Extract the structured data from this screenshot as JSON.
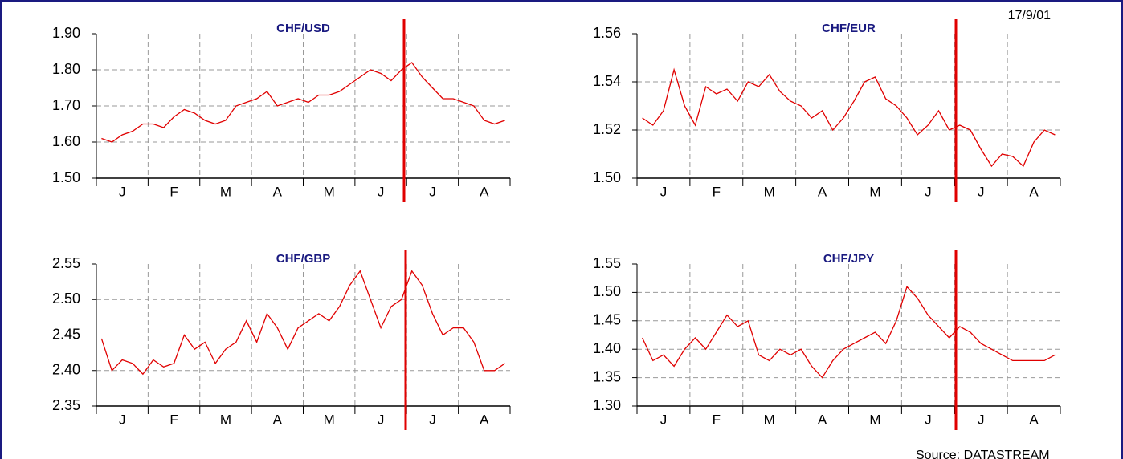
{
  "date": "17/9/01",
  "source": "Source: DATASTREAM",
  "chart_data": [
    {
      "type": "line",
      "title": "CHF/USD",
      "color": "#e00000",
      "grid": true,
      "categories": [
        null,
        null,
        "J",
        null,
        null,
        null,
        null,
        "F",
        null,
        null,
        null,
        null,
        "M",
        null,
        null,
        null,
        null,
        "A",
        null,
        null,
        null,
        null,
        "M",
        null,
        null,
        null,
        null,
        "J",
        null,
        null,
        null,
        null,
        "J",
        null,
        null,
        null,
        null,
        "A",
        null,
        null
      ],
      "values": [
        1.61,
        1.6,
        1.62,
        1.63,
        1.65,
        1.65,
        1.64,
        1.67,
        1.69,
        1.68,
        1.66,
        1.65,
        1.66,
        1.7,
        1.71,
        1.72,
        1.74,
        1.7,
        1.71,
        1.72,
        1.71,
        1.73,
        1.73,
        1.74,
        1.76,
        1.78,
        1.8,
        1.79,
        1.77,
        1.8,
        1.82,
        1.78,
        1.75,
        1.72,
        1.72,
        1.71,
        1.7,
        1.66,
        1.65,
        1.66
      ],
      "ylim": [
        1.5,
        1.9
      ],
      "yticks": [
        {
          "value": 1.5,
          "label": "1.50"
        },
        {
          "value": 1.6,
          "label": "1.60"
        },
        {
          "value": 1.7,
          "label": "1.70"
        },
        {
          "value": 1.8,
          "label": "1.80"
        },
        {
          "value": 1.9,
          "label": "1.90"
        }
      ]
    },
    {
      "type": "line",
      "title": "CHF/EUR",
      "color": "#e00000",
      "grid": true,
      "categories": [
        null,
        null,
        "J",
        null,
        null,
        null,
        null,
        "F",
        null,
        null,
        null,
        null,
        "M",
        null,
        null,
        null,
        null,
        "A",
        null,
        null,
        null,
        null,
        "M",
        null,
        null,
        null,
        null,
        "J",
        null,
        null,
        null,
        null,
        "J",
        null,
        null,
        null,
        null,
        "A",
        null,
        null
      ],
      "values": [
        1.525,
        1.522,
        1.528,
        1.545,
        1.53,
        1.522,
        1.538,
        1.535,
        1.537,
        1.532,
        1.54,
        1.538,
        1.543,
        1.536,
        1.532,
        1.53,
        1.525,
        1.528,
        1.52,
        1.525,
        1.532,
        1.54,
        1.542,
        1.533,
        1.53,
        1.525,
        1.518,
        1.522,
        1.528,
        1.52,
        1.522,
        1.52,
        1.512,
        1.505,
        1.51,
        1.509,
        1.505,
        1.515,
        1.52,
        1.518
      ],
      "ylim": [
        1.5,
        1.56
      ],
      "yticks": [
        {
          "value": 1.5,
          "label": "1.50"
        },
        1.52,
        1.54,
        1.56
      ]
    },
    {
      "type": "line",
      "title": "CHF/GBP",
      "color": "#e00000",
      "grid": true,
      "categories": [
        null,
        null,
        "J",
        null,
        null,
        null,
        null,
        "F",
        null,
        null,
        null,
        null,
        "M",
        null,
        null,
        null,
        null,
        "A",
        null,
        null,
        null,
        null,
        "M",
        null,
        null,
        null,
        null,
        "J",
        null,
        null,
        null,
        null,
        "J",
        null,
        null,
        null,
        null,
        "A",
        null,
        null
      ],
      "values": [
        2.445,
        2.4,
        2.415,
        2.41,
        2.395,
        2.415,
        2.405,
        2.41,
        2.45,
        2.43,
        2.44,
        2.41,
        2.43,
        2.44,
        2.47,
        2.44,
        2.48,
        2.46,
        2.43,
        2.46,
        2.47,
        2.48,
        2.47,
        2.49,
        2.52,
        2.54,
        2.5,
        2.46,
        2.49,
        2.5,
        2.54,
        2.52,
        2.48,
        2.45,
        2.46,
        2.46,
        2.44,
        2.4,
        2.4,
        2.41
      ],
      "ylim": [
        2.35,
        2.55
      ],
      "yticks": [
        2.35,
        {
          "value": 2.4,
          "label": "2.40"
        },
        2.45,
        {
          "value": 2.5,
          "label": "2.50"
        },
        2.55
      ]
    },
    {
      "type": "line",
      "title": "CHF/JPY",
      "color": "#e00000",
      "grid": true,
      "categories": [
        null,
        null,
        "J",
        null,
        null,
        null,
        null,
        "F",
        null,
        null,
        null,
        null,
        "M",
        null,
        null,
        null,
        null,
        "A",
        null,
        null,
        null,
        null,
        "M",
        null,
        null,
        null,
        null,
        "J",
        null,
        null,
        null,
        null,
        "J",
        null,
        null,
        null,
        null,
        "A",
        null,
        null
      ],
      "values": [
        1.42,
        1.38,
        1.39,
        1.37,
        1.4,
        1.42,
        1.4,
        1.43,
        1.46,
        1.44,
        1.45,
        1.39,
        1.38,
        1.4,
        1.39,
        1.4,
        1.37,
        1.35,
        1.38,
        1.4,
        1.41,
        1.42,
        1.43,
        1.41,
        1.45,
        1.51,
        1.49,
        1.46,
        1.44,
        1.42,
        1.44,
        1.43,
        1.41,
        1.4,
        1.39,
        1.38,
        1.38,
        1.38,
        1.38,
        1.39
      ],
      "ylim": [
        1.3,
        1.55
      ],
      "yticks": [
        {
          "value": 1.3,
          "label": "1.30"
        },
        1.35,
        {
          "value": 1.4,
          "label": "1.40"
        },
        1.45,
        {
          "value": 1.5,
          "label": "1.50"
        },
        1.55
      ]
    }
  ]
}
